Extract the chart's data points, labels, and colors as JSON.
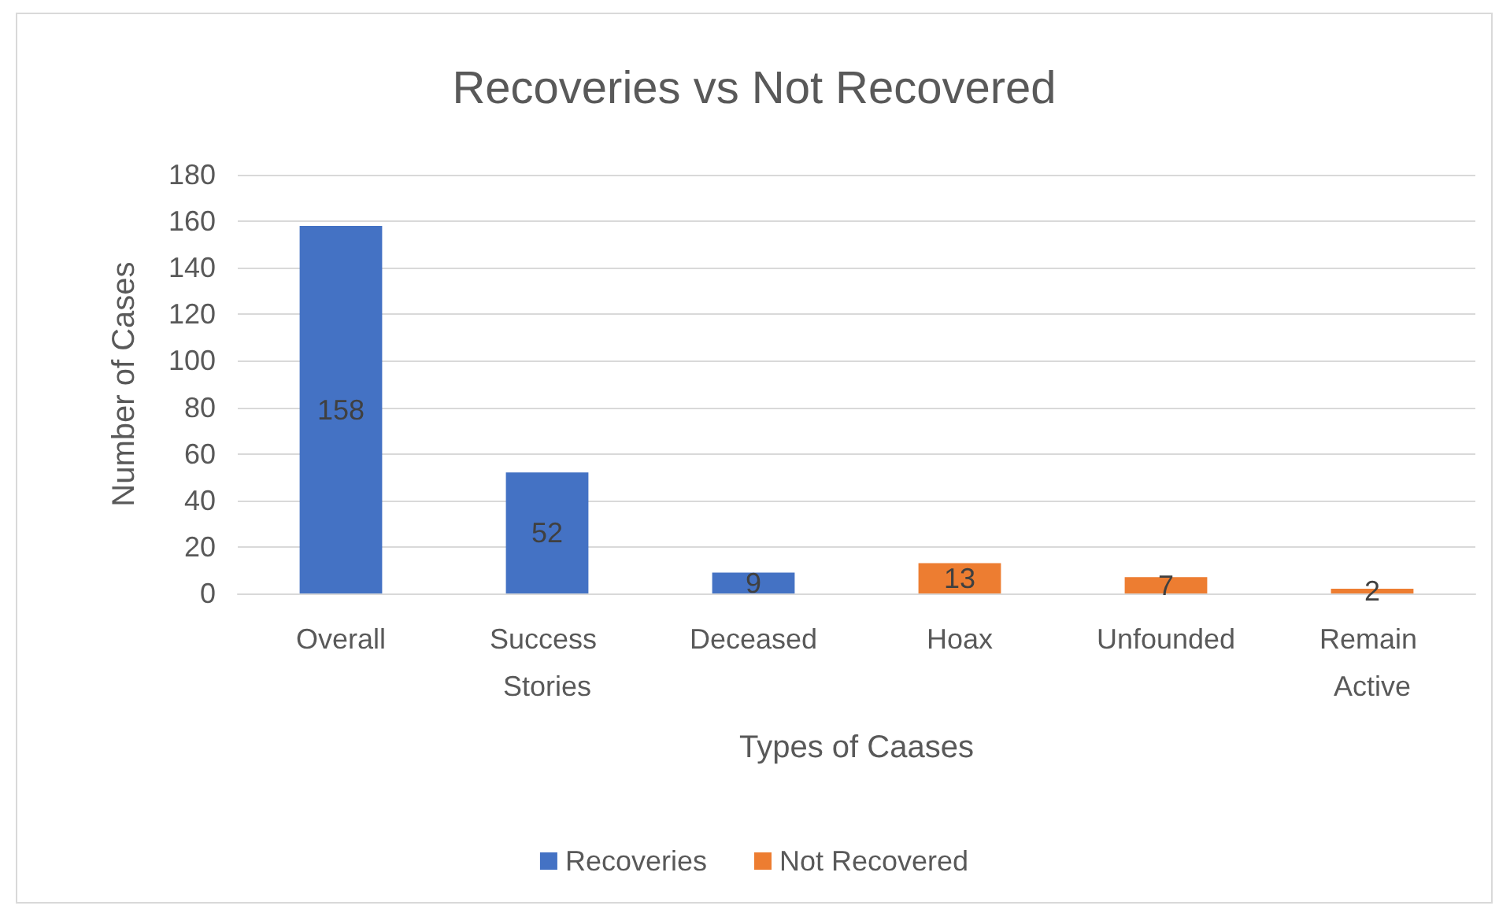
{
  "chart_data": {
    "type": "bar",
    "title": "Recoveries vs Not Recovered",
    "xlabel": "Types of Caases",
    "ylabel": "Number of Cases",
    "categories": [
      "Overall",
      "Success Stories",
      "Deceased",
      "Hoax",
      "Unfounded",
      "Remain Active"
    ],
    "series": [
      {
        "name": "Recoveries",
        "color": "#4472c4",
        "values": [
          158,
          52,
          9,
          null,
          null,
          null
        ]
      },
      {
        "name": "Not Recovered",
        "color": "#ed7d31",
        "values": [
          null,
          null,
          null,
          13,
          7,
          2
        ]
      }
    ],
    "ylim": [
      0,
      180
    ],
    "yticks": [
      0,
      20,
      40,
      60,
      80,
      100,
      120,
      140,
      160,
      180
    ],
    "grid": "y",
    "legend": "bottom",
    "data_labels": true
  }
}
